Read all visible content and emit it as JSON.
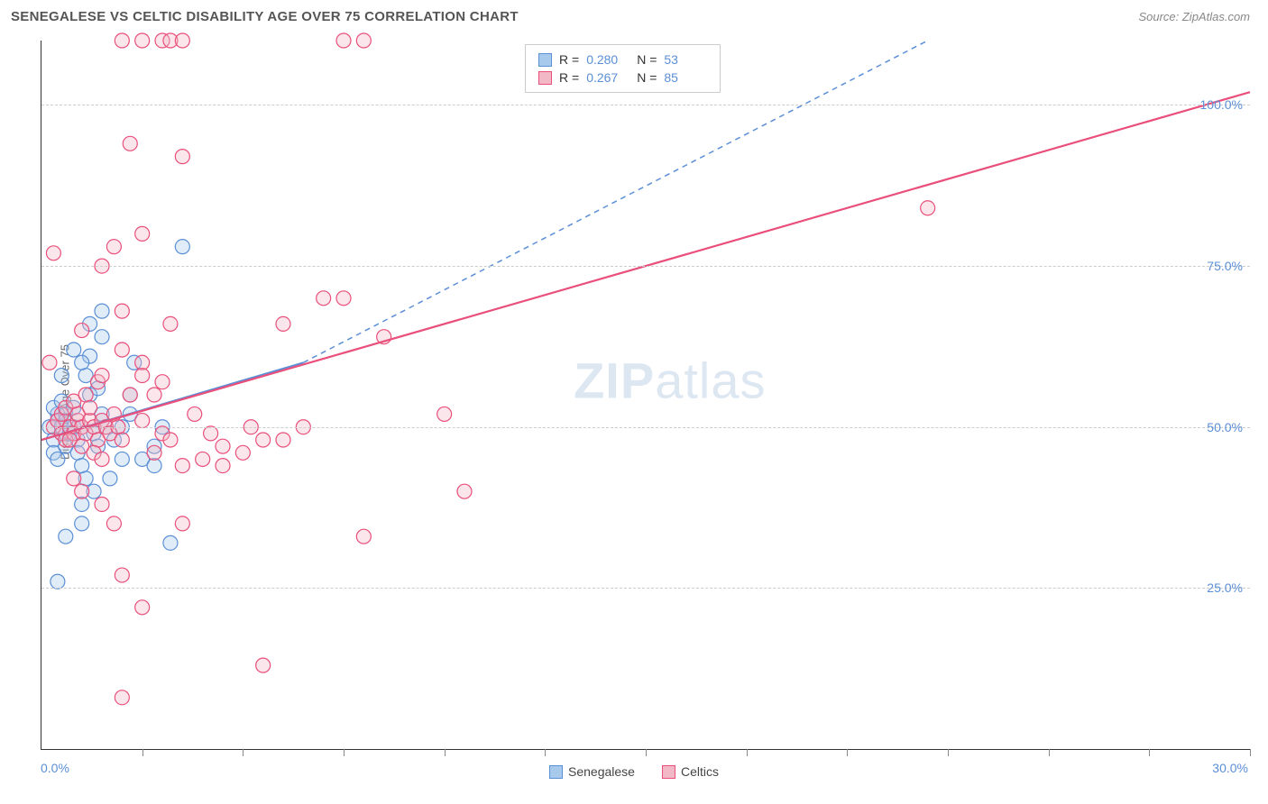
{
  "title": "SENEGALESE VS CELTIC DISABILITY AGE OVER 75 CORRELATION CHART",
  "source_label": "Source: ZipAtlas.com",
  "y_axis_label": "Disability Age Over 75",
  "watermark_zip": "ZIP",
  "watermark_atlas": "atlas",
  "chart": {
    "type": "scatter",
    "background_color": "#ffffff",
    "grid_color": "#cccccc",
    "xlim": [
      0,
      30
    ],
    "ylim": [
      0,
      110
    ],
    "x_origin_label": "0.0%",
    "x_max_label": "30.0%",
    "y_ticks": [
      {
        "v": 25,
        "label": "25.0%"
      },
      {
        "v": 50,
        "label": "50.0%"
      },
      {
        "v": 75,
        "label": "75.0%"
      },
      {
        "v": 100,
        "label": "100.0%"
      }
    ],
    "x_tick_positions": [
      2.5,
      5,
      7.5,
      10,
      12.5,
      15,
      17.5,
      20,
      22.5,
      25,
      27.5,
      30
    ],
    "marker_radius": 8,
    "marker_fill_opacity": 0.35,
    "marker_stroke_width": 1.2,
    "series": [
      {
        "name": "Senegalese",
        "color_fill": "#a7c9ec",
        "color_stroke": "#5b8fd6",
        "r_label": "R =",
        "r_value": "0.280",
        "n_label": "N =",
        "n_value": "53",
        "trend_solid": {
          "x1": 0,
          "y1": 48,
          "x2": 6.5,
          "y2": 60,
          "width": 2
        },
        "trend_dashed": {
          "x1": 6.5,
          "y1": 60,
          "x2": 22,
          "y2": 110,
          "width": 1.5,
          "dash": "6,5"
        },
        "points": [
          [
            0.2,
            50
          ],
          [
            0.3,
            48
          ],
          [
            0.4,
            52
          ],
          [
            0.3,
            46
          ],
          [
            0.5,
            49
          ],
          [
            0.4,
            51
          ],
          [
            0.6,
            47
          ],
          [
            0.3,
            53
          ],
          [
            0.5,
            50
          ],
          [
            0.7,
            49
          ],
          [
            0.4,
            45
          ],
          [
            0.6,
            52
          ],
          [
            0.8,
            50
          ],
          [
            0.5,
            54
          ],
          [
            0.9,
            48
          ],
          [
            0.6,
            51
          ],
          [
            1.0,
            50
          ],
          [
            0.8,
            53
          ],
          [
            1.1,
            42
          ],
          [
            0.9,
            46
          ],
          [
            1.2,
            55
          ],
          [
            1.0,
            44
          ],
          [
            1.3,
            49
          ],
          [
            1.1,
            58
          ],
          [
            1.4,
            47
          ],
          [
            1.2,
            61
          ],
          [
            1.5,
            64
          ],
          [
            1.3,
            40
          ],
          [
            1.6,
            50
          ],
          [
            1.4,
            56
          ],
          [
            1.0,
            35
          ],
          [
            0.6,
            33
          ],
          [
            1.0,
            38
          ],
          [
            0.4,
            26
          ],
          [
            1.8,
            48
          ],
          [
            2.0,
            45
          ],
          [
            2.2,
            52
          ],
          [
            0.8,
            62
          ],
          [
            1.5,
            68
          ],
          [
            1.0,
            60
          ],
          [
            0.5,
            58
          ],
          [
            1.2,
            66
          ],
          [
            2.5,
            45
          ],
          [
            2.8,
            47
          ],
          [
            1.7,
            42
          ],
          [
            2.2,
            55
          ],
          [
            2.0,
            50
          ],
          [
            1.5,
            52
          ],
          [
            3.5,
            78
          ],
          [
            2.3,
            60
          ],
          [
            2.8,
            44
          ],
          [
            3.0,
            50
          ],
          [
            3.2,
            32
          ]
        ]
      },
      {
        "name": "Celtics",
        "color_fill": "#f2b8c6",
        "color_stroke": "#e94f7a",
        "r_label": "R =",
        "r_value": "0.267",
        "n_label": "N =",
        "n_value": "85",
        "trend_solid": {
          "x1": 0,
          "y1": 48,
          "x2": 30,
          "y2": 102,
          "width": 2.2
        },
        "trend_dashed": null,
        "points": [
          [
            0.3,
            50
          ],
          [
            0.5,
            49
          ],
          [
            0.4,
            51
          ],
          [
            0.6,
            48
          ],
          [
            0.7,
            50
          ],
          [
            0.5,
            52
          ],
          [
            0.8,
            49
          ],
          [
            0.6,
            53
          ],
          [
            0.9,
            51
          ],
          [
            0.7,
            48
          ],
          [
            1.0,
            50
          ],
          [
            0.8,
            54
          ],
          [
            1.1,
            49
          ],
          [
            0.9,
            52
          ],
          [
            1.2,
            51
          ],
          [
            1.0,
            47
          ],
          [
            1.3,
            50
          ],
          [
            1.1,
            55
          ],
          [
            1.4,
            48
          ],
          [
            1.2,
            53
          ],
          [
            1.5,
            51
          ],
          [
            1.3,
            46
          ],
          [
            1.6,
            50
          ],
          [
            1.4,
            57
          ],
          [
            1.7,
            49
          ],
          [
            1.5,
            45
          ],
          [
            1.8,
            52
          ],
          [
            1.9,
            50
          ],
          [
            2.0,
            48
          ],
          [
            2.2,
            55
          ],
          [
            2.5,
            51
          ],
          [
            2.8,
            46
          ],
          [
            3.0,
            49
          ],
          [
            3.5,
            44
          ],
          [
            0.3,
            77
          ],
          [
            1.5,
            75
          ],
          [
            2.0,
            110
          ],
          [
            2.5,
            110
          ],
          [
            3.0,
            110
          ],
          [
            3.2,
            110
          ],
          [
            3.5,
            110
          ],
          [
            7.5,
            110
          ],
          [
            8.0,
            110
          ],
          [
            2.2,
            94
          ],
          [
            3.5,
            92
          ],
          [
            2.5,
            80
          ],
          [
            2.0,
            68
          ],
          [
            3.2,
            66
          ],
          [
            1.8,
            78
          ],
          [
            0.2,
            60
          ],
          [
            1.0,
            65
          ],
          [
            1.5,
            58
          ],
          [
            2.0,
            62
          ],
          [
            2.5,
            60
          ],
          [
            3.0,
            57
          ],
          [
            4.5,
            44
          ],
          [
            5.0,
            46
          ],
          [
            5.5,
            48
          ],
          [
            6.0,
            66
          ],
          [
            6.5,
            50
          ],
          [
            7.0,
            70
          ],
          [
            7.5,
            70
          ],
          [
            8.0,
            33
          ],
          [
            8.5,
            64
          ],
          [
            10.0,
            52
          ],
          [
            10.5,
            40
          ],
          [
            5.5,
            13
          ],
          [
            2.0,
            8
          ],
          [
            2.5,
            22
          ],
          [
            2.0,
            27
          ],
          [
            3.5,
            35
          ],
          [
            1.8,
            35
          ],
          [
            1.0,
            40
          ],
          [
            1.5,
            38
          ],
          [
            0.8,
            42
          ],
          [
            4.0,
            45
          ],
          [
            4.5,
            47
          ],
          [
            3.2,
            48
          ],
          [
            2.8,
            55
          ],
          [
            2.5,
            58
          ],
          [
            22.0,
            84
          ],
          [
            5.2,
            50
          ],
          [
            6.0,
            48
          ],
          [
            3.8,
            52
          ],
          [
            4.2,
            49
          ]
        ]
      }
    ]
  },
  "legend": {
    "items": [
      {
        "label": "Senegalese",
        "fill": "#a7c9ec",
        "stroke": "#5b8fd6"
      },
      {
        "label": "Celtics",
        "fill": "#f2b8c6",
        "stroke": "#e94f7a"
      }
    ]
  }
}
